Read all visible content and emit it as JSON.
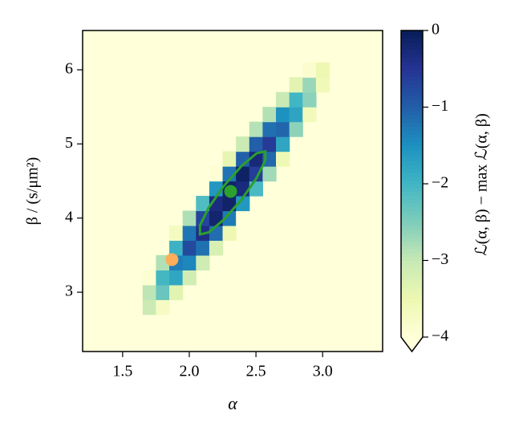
{
  "chart_data": {
    "type": "heatmap",
    "x_label": "α",
    "y_label": "β / (s/μm²)",
    "x": [
      1.7,
      1.8,
      1.9,
      2.0,
      2.1,
      2.2,
      2.3,
      2.4,
      2.5,
      2.6,
      2.7,
      2.8,
      2.9,
      3.0
    ],
    "y": [
      2.8,
      3.0,
      3.2,
      3.4,
      3.6,
      3.8,
      4.0,
      4.2,
      4.4,
      4.6,
      4.8,
      5.0,
      5.2,
      5.4,
      5.6,
      5.8,
      6.0
    ],
    "z": [
      [
        -3.06,
        -3.74,
        null,
        null,
        null,
        null,
        null,
        null,
        null,
        null,
        null,
        null,
        null,
        null
      ],
      [
        -2.93,
        -2.33,
        -3.35,
        null,
        null,
        null,
        null,
        null,
        null,
        null,
        null,
        null,
        null,
        null
      ],
      [
        -3.9,
        -2.03,
        -1.78,
        -3.14,
        null,
        null,
        null,
        null,
        null,
        null,
        null,
        null,
        null,
        null
      ],
      [
        null,
        -2.84,
        -1.31,
        -1.4,
        -3.09,
        null,
        null,
        null,
        null,
        null,
        null,
        null,
        null,
        null
      ],
      [
        null,
        null,
        -1.95,
        -0.76,
        -1.19,
        -3.22,
        null,
        null,
        null,
        null,
        null,
        null,
        null,
        null
      ],
      [
        null,
        null,
        -3.7,
        -1.24,
        -0.39,
        -1.15,
        -3.52,
        null,
        null,
        null,
        null,
        null,
        null,
        null
      ],
      [
        null,
        null,
        null,
        -2.83,
        -0.7,
        -0.18,
        -1.28,
        -3.99,
        null,
        null,
        null,
        null,
        null,
        null
      ],
      [
        null,
        null,
        null,
        null,
        -2.12,
        -0.33,
        -0.15,
        -1.59,
        null,
        null,
        null,
        null,
        null,
        null
      ],
      [
        null,
        null,
        null,
        null,
        null,
        -1.58,
        -0.13,
        -0.3,
        -2.07,
        null,
        null,
        null,
        null,
        null
      ],
      [
        null,
        null,
        null,
        null,
        null,
        -3.94,
        -1.22,
        -0.1,
        -0.61,
        -2.73,
        null,
        null,
        null,
        null
      ],
      [
        null,
        null,
        null,
        null,
        null,
        null,
        -3.41,
        -1.03,
        -0.26,
        -1.1,
        -3.56,
        null,
        null,
        null
      ],
      [
        null,
        null,
        null,
        null,
        null,
        null,
        null,
        -3.05,
        -1.01,
        -0.58,
        -1.77,
        null,
        null,
        null
      ],
      [
        null,
        null,
        null,
        null,
        null,
        null,
        null,
        null,
        -2.87,
        -1.17,
        -1.08,
        -2.6,
        null,
        null
      ],
      [
        null,
        null,
        null,
        null,
        null,
        null,
        null,
        null,
        null,
        -2.86,
        -1.5,
        -1.75,
        -3.61,
        null
      ],
      [
        null,
        null,
        null,
        null,
        null,
        null,
        null,
        null,
        null,
        null,
        -3.03,
        -2.0,
        -2.59,
        null
      ],
      [
        null,
        null,
        null,
        null,
        null,
        null,
        null,
        null,
        null,
        null,
        null,
        -3.37,
        -2.68,
        -3.6
      ],
      [
        null,
        null,
        null,
        null,
        null,
        null,
        null,
        null,
        null,
        null,
        null,
        null,
        -3.88,
        -3.52
      ]
    ],
    "xlim": [
      1.2,
      3.45
    ],
    "ylim": [
      2.2,
      6.53
    ],
    "xticks": [
      1.5,
      {
        "value": 2,
        "label": "2.0"
      },
      2.5,
      {
        "value": 3,
        "label": "3.0"
      }
    ],
    "yticks": [
      3,
      4,
      5,
      6
    ],
    "colormap": [
      "#ffffd9",
      "#edf8b1",
      "#c7e9b4",
      "#7fcdbb",
      "#41b6c4",
      "#1d91c0",
      "#225ea8",
      "#253494",
      "#081d58"
    ],
    "clim": [
      -4,
      0
    ],
    "colorbar": {
      "label": "ℒ(α, β) − max ℒ(α, β)",
      "ticks": [
        0,
        {
          "value": -1,
          "label": "−1"
        },
        {
          "value": -2,
          "label": "−2"
        },
        {
          "value": -3,
          "label": "−3"
        },
        {
          "value": -4,
          "label": "−4"
        }
      ]
    },
    "contour": {
      "color": "#2ca02c",
      "x": [
        2.57,
        2.57,
        2.504,
        2.39,
        2.258,
        2.146,
        2.08,
        2.08,
        2.146,
        2.26,
        2.392,
        2.504
      ],
      "y": [
        4.9,
        4.777,
        4.538,
        4.245,
        3.978,
        3.807,
        3.78,
        3.903,
        4.142,
        4.435,
        4.702,
        4.873
      ]
    },
    "markers": [
      {
        "x": 2.31,
        "y": 4.36,
        "color": "#2ca02c"
      },
      {
        "x": 1.87,
        "y": 3.44,
        "color": "#ffad5a"
      }
    ]
  }
}
